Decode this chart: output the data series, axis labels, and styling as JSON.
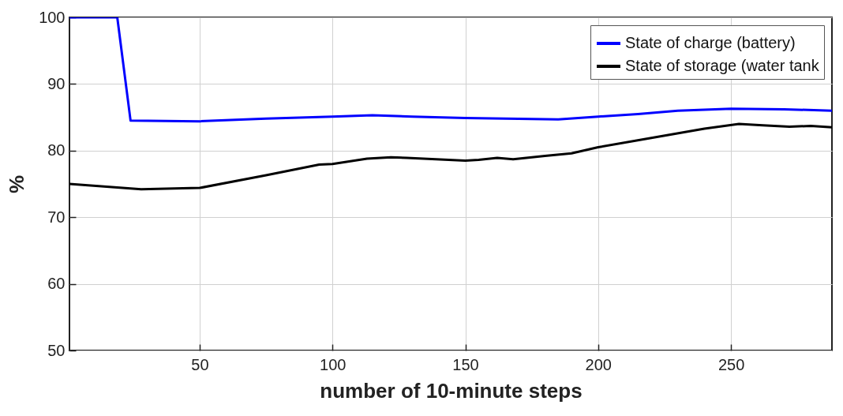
{
  "chart_data": {
    "type": "line",
    "xlabel": "number of 10-minute steps",
    "ylabel": "%",
    "xlim": [
      1,
      288
    ],
    "ylim": [
      50,
      100
    ],
    "xticks": [
      50,
      100,
      150,
      200,
      250
    ],
    "yticks": [
      50,
      60,
      70,
      80,
      90,
      100
    ],
    "grid": true,
    "legend": "top right",
    "line_style": "solid",
    "marker": "none",
    "series": [
      {
        "name": "State of charge (battery)",
        "color": "#0000ff",
        "x": [
          1,
          19,
          24,
          50,
          75,
          100,
          115,
          130,
          150,
          165,
          185,
          200,
          215,
          230,
          250,
          270,
          288
        ],
        "values": [
          100,
          100,
          84.5,
          84.4,
          84.8,
          85.1,
          85.3,
          85.1,
          84.9,
          84.8,
          84.7,
          85.1,
          85.5,
          86.0,
          86.3,
          86.2,
          86.0
        ]
      },
      {
        "name": "State of storage (water tank",
        "color": "#000000",
        "x": [
          1,
          28,
          50,
          75,
          95,
          100,
          113,
          122,
          128,
          150,
          155,
          162,
          168,
          180,
          190,
          200,
          220,
          240,
          253,
          262,
          272,
          280,
          288
        ],
        "values": [
          75.0,
          74.2,
          74.4,
          76.3,
          77.9,
          78.0,
          78.8,
          79.0,
          78.9,
          78.5,
          78.6,
          78.9,
          78.7,
          79.2,
          79.6,
          80.5,
          81.9,
          83.3,
          84.0,
          83.8,
          83.6,
          83.7,
          83.5
        ]
      }
    ]
  }
}
